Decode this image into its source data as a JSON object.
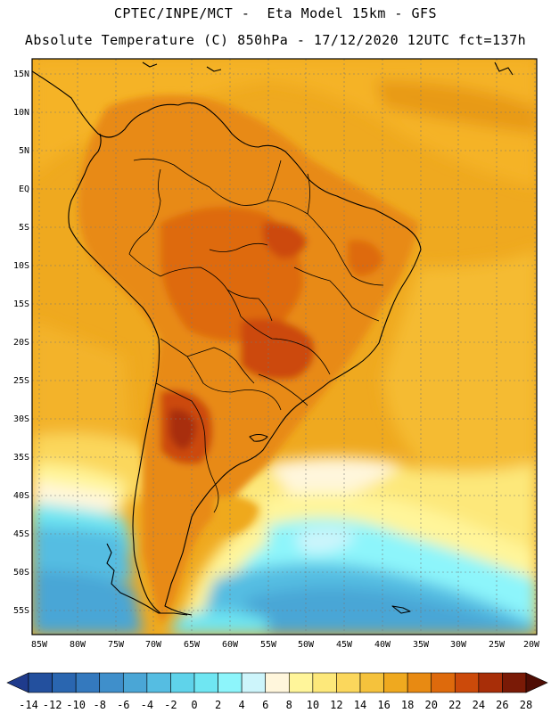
{
  "title": {
    "line1": "CPTEC/INPE/MCT -  Eta Model 15km - GFS",
    "line2": "Absolute Temperature (C) 850hPa - 17/12/2020 12UTC fct=137h"
  },
  "axes": {
    "lat_labels": [
      "15N",
      "10N",
      "5N",
      "EQ",
      "5S",
      "10S",
      "15S",
      "20S",
      "25S",
      "30S",
      "35S",
      "40S",
      "45S",
      "50S",
      "55S"
    ],
    "lon_labels": [
      "85W",
      "80W",
      "75W",
      "70W",
      "65W",
      "60W",
      "55W",
      "50W",
      "45W",
      "40W",
      "35W",
      "30W",
      "25W",
      "20W"
    ]
  },
  "colorbar": {
    "labels": [
      "-14",
      "-12",
      "-10",
      "-8",
      "-6",
      "-4",
      "-2",
      "0",
      "2",
      "4",
      "6",
      "8",
      "10",
      "12",
      "14",
      "16",
      "18",
      "20",
      "22",
      "24",
      "26",
      "28"
    ],
    "colors": [
      "#1f3b8c",
      "#23509e",
      "#2a66b0",
      "#3479be",
      "#3f8fcb",
      "#4aa6d6",
      "#55bde2",
      "#5fd3ea",
      "#6fe6f2",
      "#8df5fb",
      "#cdf5fb",
      "#fff6dc",
      "#fff59a",
      "#fde87a",
      "#fbd75c",
      "#f5c23c",
      "#efa91f",
      "#e88a12",
      "#de6a0c",
      "#cc4a0a",
      "#a82e08",
      "#7a1a06",
      "#4f0d04"
    ]
  }
}
